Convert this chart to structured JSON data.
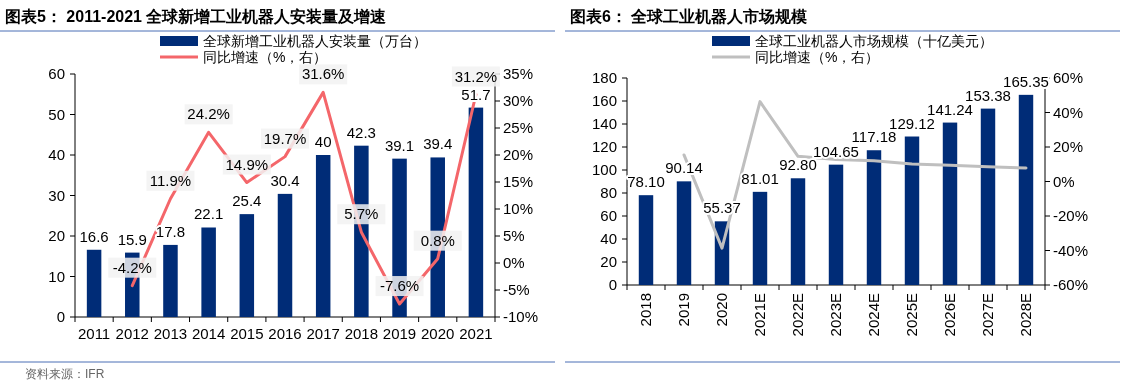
{
  "chart_data": [
    {
      "type": "bar",
      "title": "图表5： 2011-2021 全球新增工业机器人安装量及增速",
      "categories": [
        "2011",
        "2012",
        "2013",
        "2014",
        "2015",
        "2016",
        "2017",
        "2018",
        "2019",
        "2020",
        "2021"
      ],
      "series": [
        {
          "name": "全球新增工业机器人安装量（万台）",
          "color": "#002c77",
          "values": [
            16.6,
            15.9,
            17.8,
            22.1,
            25.4,
            30.4,
            40,
            42.3,
            39.1,
            39.4,
            51.7
          ],
          "value_labels": [
            "16.6",
            "15.9",
            "17.8",
            "22.1",
            "25.4",
            "30.4",
            "40",
            "42.3",
            "39.1",
            "39.4",
            "51.7"
          ]
        },
        {
          "name": "同比增速（%，右）",
          "type": "line",
          "axis": "y2",
          "color": "#f4666a",
          "values": [
            null,
            -4.2,
            11.9,
            24.2,
            14.9,
            19.7,
            31.6,
            5.7,
            -7.6,
            0.8,
            31.2
          ],
          "value_labels": [
            null,
            "-4.2%",
            "11.9%",
            "24.2%",
            "14.9%",
            "19.7%",
            "31.6%",
            "5.7%",
            "-7.6%",
            "0.8%",
            "31.2%"
          ]
        }
      ],
      "ylim": [
        0,
        60
      ],
      "yticks": [
        0,
        10,
        20,
        30,
        40,
        50,
        60
      ],
      "y2lim": [
        -10,
        35
      ],
      "y2ticks": [
        {
          "value": -10,
          "label": "-10%"
        },
        {
          "value": -5,
          "label": "-5%"
        },
        {
          "value": 0,
          "label": "0%"
        },
        {
          "value": 5,
          "label": "5%"
        },
        {
          "value": 10,
          "label": "10%"
        },
        {
          "value": 15,
          "label": "15%"
        },
        {
          "value": 20,
          "label": "20%"
        },
        {
          "value": 25,
          "label": "25%"
        },
        {
          "value": 30,
          "label": "30%"
        },
        {
          "value": 35,
          "label": "35%"
        }
      ],
      "legend": "top",
      "annotations": [
        "资料来源：IFR"
      ]
    },
    {
      "type": "bar",
      "title": "图表6： 全球工业机器人市场规模",
      "categories": [
        "2018",
        "2019",
        "2020",
        "2021E",
        "2022E",
        "2023E",
        "2024E",
        "2025E",
        "2026E",
        "2027E",
        "2028E"
      ],
      "series": [
        {
          "name": "全球工业机器人市场规模（十亿美元）",
          "color": "#002c77",
          "values": [
            78.1,
            90.14,
            55.37,
            81.01,
            92.8,
            104.65,
            117.18,
            129.12,
            141.24,
            153.38,
            165.35
          ],
          "value_labels": [
            "78.10",
            "90.14",
            "55.37",
            "81.01",
            "92.80",
            "104.65",
            "117.18",
            "129.12",
            "141.24",
            "153.38",
            "165.35"
          ]
        },
        {
          "name": "同比增速（%，右）",
          "type": "line",
          "axis": "y2",
          "color": "#bfbfbf",
          "values": [
            null,
            15.4,
            -38.6,
            46.3,
            14.6,
            12.8,
            12.0,
            10.2,
            9.4,
            8.6,
            7.8
          ]
        }
      ],
      "ylim": [
        0,
        180
      ],
      "yticks": [
        0,
        20,
        40,
        60,
        80,
        100,
        120,
        140,
        160,
        180
      ],
      "y2lim": [
        -60,
        60
      ],
      "y2ticks": [
        {
          "value": -60,
          "label": "-60%"
        },
        {
          "value": -40,
          "label": "-40%"
        },
        {
          "value": -20,
          "label": "-20%"
        },
        {
          "value": 0,
          "label": "0%"
        },
        {
          "value": 20,
          "label": "20%"
        },
        {
          "value": 40,
          "label": "40%"
        },
        {
          "value": 60,
          "label": "60%"
        }
      ],
      "legend": "top"
    }
  ]
}
